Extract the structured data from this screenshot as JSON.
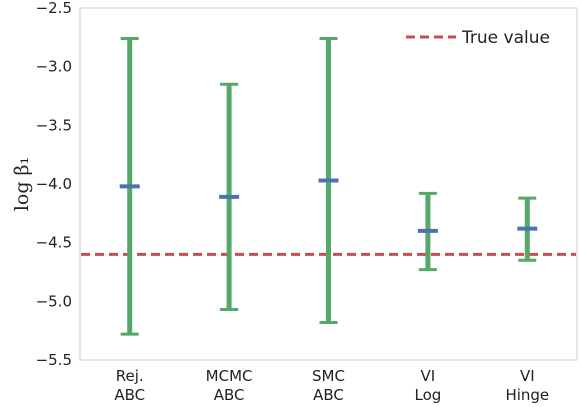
{
  "chart_data": {
    "type": "errorbar",
    "title": "",
    "xlabel": "",
    "ylabel": "log β₁",
    "ylim": [
      -5.5,
      -2.5
    ],
    "yticks": [
      -5.5,
      -5.0,
      -4.5,
      -4.0,
      -3.5,
      -3.0,
      -2.5
    ],
    "ytick_labels": [
      "−5.5",
      "−5.0",
      "−4.5",
      "−4.0",
      "−3.5",
      "−3.0",
      "−2.5"
    ],
    "categories": [
      [
        "Rej.",
        "ABC"
      ],
      [
        "MCMC",
        "ABC"
      ],
      [
        "SMC",
        "ABC"
      ],
      [
        "VI",
        "Log"
      ],
      [
        "VI",
        "Hinge"
      ]
    ],
    "estimates": [
      -4.02,
      -4.11,
      -3.97,
      -4.4,
      -4.38
    ],
    "lower": [
      -5.28,
      -5.07,
      -5.18,
      -4.73,
      -4.65
    ],
    "upper": [
      -2.76,
      -3.15,
      -2.76,
      -4.08,
      -4.12
    ],
    "reference_line": {
      "label": "True value",
      "value": -4.6
    },
    "legend_position": "top-right",
    "grid": false,
    "colors": {
      "errorbar": "#55a868",
      "estimate": "#4c72b0",
      "reference": "#c44e52",
      "axes": "#cccccc"
    }
  }
}
